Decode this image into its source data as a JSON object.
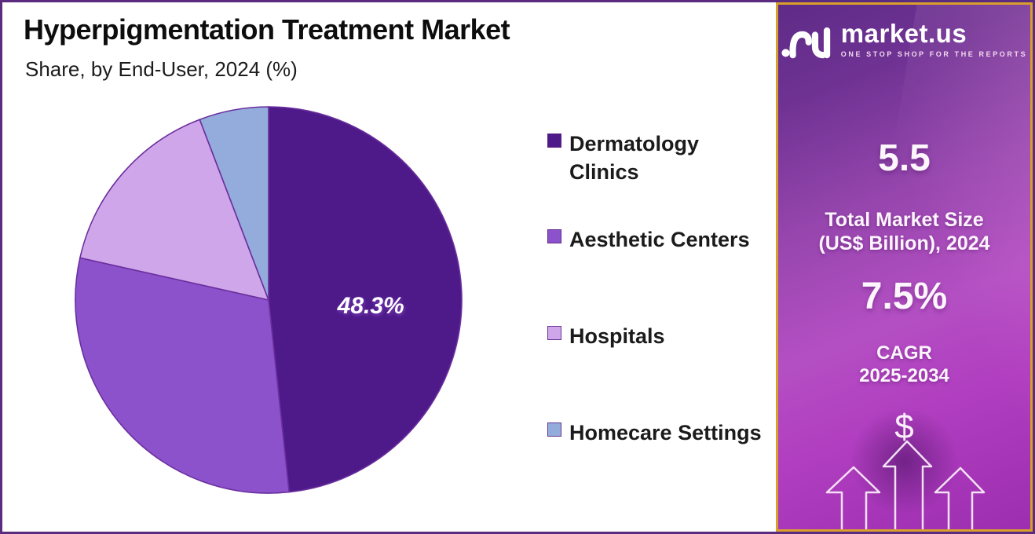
{
  "chart_data": {
    "type": "pie",
    "title": "Hyperpigmentation Treatment Market",
    "subtitle": "Share, by End-User, 2024 (%)",
    "unit": "%",
    "legend_position": "right",
    "slices": [
      {
        "label": "Dermatology Clinics",
        "label_lines": [
          "Dermatology",
          "Clinics"
        ],
        "value": 48.3,
        "color": "#4E1A8A",
        "data_label": "48.3%"
      },
      {
        "label": "Aesthetic Centers",
        "value": 30.2,
        "color": "#8C52CC",
        "data_label": null
      },
      {
        "label": "Hospitals",
        "value": 15.7,
        "color": "#CFA6EA",
        "data_label": null
      },
      {
        "label": "Homecare Settings",
        "value": 5.8,
        "color": "#93ACDB",
        "data_label": null
      }
    ]
  },
  "sidebar": {
    "logo": {
      "brand": "market.us",
      "tagline": "ONE STOP SHOP FOR THE REPORTS"
    },
    "market_size_value": "5.5",
    "market_size_label_line1": "Total Market Size",
    "market_size_label_line2": "(US$ Billion), 2024",
    "cagr_value": "7.5%",
    "cagr_label_line1": "CAGR",
    "cagr_label_line2": "2025-2034",
    "dollar_icon": "$"
  },
  "colors": {
    "frame_border": "#5B2B7F",
    "sidebar_border": "#D99F2B",
    "sidebar_gradient_top": "#5F2B87",
    "sidebar_gradient_mid": "#A94BBC",
    "sidebar_gradient_bottom": "#9C2EAF",
    "slice_stroke": "#6B2F9E",
    "pie_label_color": "#FFFFFF",
    "title_color": "#0D0D0D"
  }
}
